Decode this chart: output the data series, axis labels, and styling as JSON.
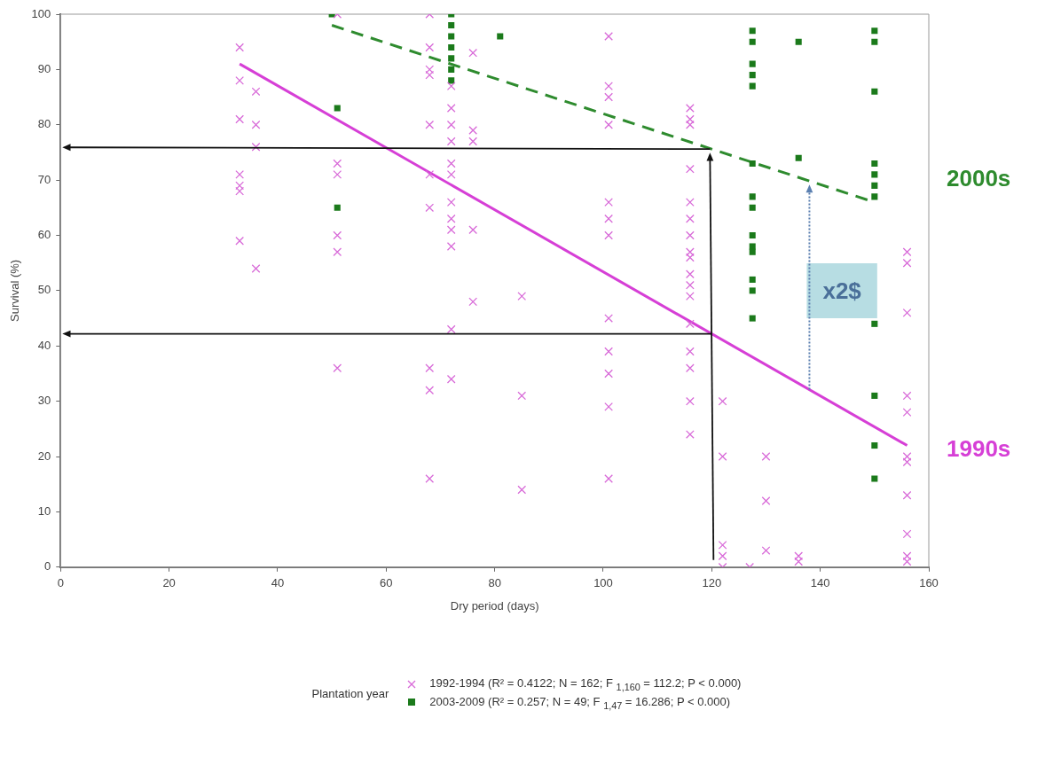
{
  "chart_data": {
    "type": "scatter",
    "xlabel": "Dry period (days)",
    "ylabel": "Survival (%)",
    "legend_title": "Plantation year",
    "legend": "bottom",
    "xlim": [
      0,
      160
    ],
    "xticks": [
      0,
      20,
      40,
      60,
      80,
      100,
      120,
      140,
      160
    ],
    "ylim": [
      0,
      100
    ],
    "yticks": [
      0,
      10,
      20,
      30,
      40,
      50,
      60,
      70,
      80,
      90,
      100
    ],
    "series": [
      {
        "name": "1992-1994 (R² = 0.4122; N = 162; F $_{1,160}$ = 112.2; P < 0.000)",
        "marker": "cross",
        "color": "#d86ad8",
        "x": [
          33,
          33,
          33,
          33,
          33,
          33,
          33,
          36,
          36,
          36,
          36,
          51,
          51,
          51,
          51,
          51,
          51,
          68,
          68,
          68,
          68,
          68,
          68,
          68,
          68,
          68,
          68,
          72,
          72,
          72,
          72,
          72,
          72,
          72,
          72,
          72,
          72,
          72,
          72,
          76,
          76,
          76,
          76,
          76,
          85,
          85,
          85,
          101,
          101,
          101,
          101,
          101,
          101,
          101,
          101,
          101,
          101,
          101,
          101,
          116,
          116,
          116,
          116,
          116,
          116,
          116,
          116,
          116,
          116,
          116,
          116,
          116,
          116,
          116,
          116,
          116,
          122,
          122,
          122,
          122,
          122,
          127,
          130,
          130,
          130,
          136,
          136,
          156,
          156,
          156,
          156,
          156,
          156,
          156,
          156,
          156,
          156,
          156
        ],
        "values": [
          94,
          88,
          81,
          71,
          69,
          68,
          59,
          86,
          80,
          76,
          54,
          100,
          73,
          71,
          60,
          57,
          36,
          100,
          94,
          90,
          89,
          80,
          71,
          65,
          36,
          32,
          16,
          87,
          83,
          80,
          77,
          73,
          71,
          66,
          63,
          61,
          58,
          43,
          34,
          93,
          79,
          77,
          61,
          48,
          49,
          31,
          14,
          96,
          87,
          85,
          80,
          66,
          63,
          60,
          45,
          39,
          35,
          29,
          16,
          83,
          81,
          80,
          72,
          66,
          63,
          60,
          57,
          56,
          53,
          51,
          49,
          44,
          39,
          36,
          30,
          24,
          30,
          20,
          4,
          2,
          0,
          0,
          20,
          12,
          3,
          2,
          1,
          57,
          55,
          46,
          31,
          28,
          20,
          19,
          13,
          6,
          2,
          1
        ]
      },
      {
        "name": "2003-2009 (R² = 0.257; N = 49; F $_{1,47}$ = 16.286; P < 0.000)",
        "marker": "square",
        "color": "#1b7a1b",
        "x": [
          50,
          51,
          51,
          72,
          72,
          72,
          72,
          72,
          72,
          72,
          81,
          127.5,
          127.5,
          127.5,
          127.5,
          127.5,
          127.5,
          127.5,
          127.5,
          127.5,
          127.5,
          127.5,
          127.5,
          127.5,
          127.5,
          136,
          136,
          150,
          150,
          150,
          150,
          150,
          150,
          150,
          150,
          150,
          150,
          150
        ],
        "values": [
          100,
          83,
          65,
          100,
          98,
          96,
          94,
          92,
          90,
          88,
          96,
          97,
          95,
          91,
          89,
          87,
          73,
          67,
          65,
          60,
          58,
          57,
          52,
          50,
          45,
          95,
          74,
          97,
          95,
          86,
          73,
          71,
          69,
          67,
          44,
          31,
          22,
          16
        ]
      },
      {
        "type": "line",
        "color": "#d63fd6",
        "line_style": "solid",
        "x": [
          33,
          156
        ],
        "values": [
          91,
          22
        ]
      },
      {
        "type": "line",
        "color": "#2e8b2e",
        "line_style": "dashed",
        "x": [
          50,
          150
        ],
        "values": [
          98,
          66
        ]
      }
    ],
    "annotations": [
      "x2$",
      "2000s",
      "1990s"
    ]
  }
}
